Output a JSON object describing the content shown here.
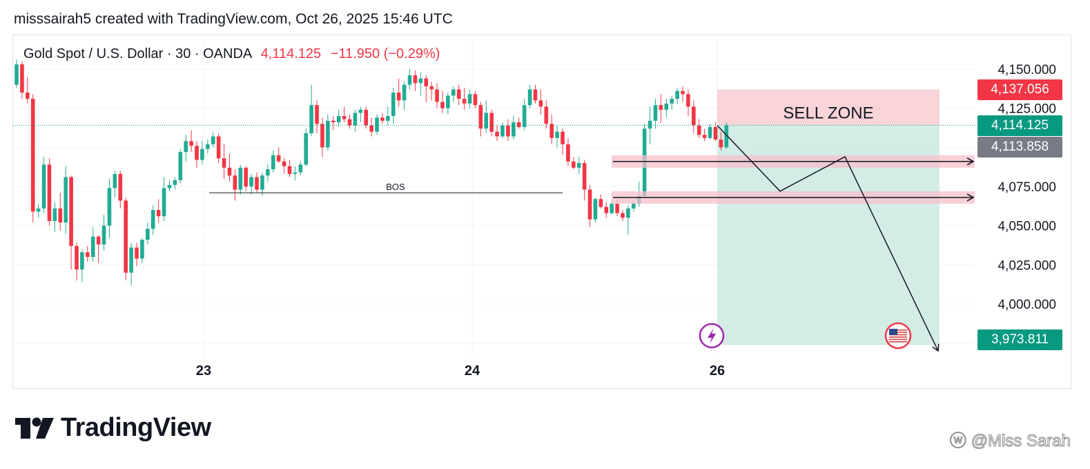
{
  "header": {
    "text": "misssairah5 created with TradingView.com, Oct 26, 2025 15:46 UTC"
  },
  "legend": {
    "symbol": "Gold Spot / U.S. Dollar · 30 · OANDA",
    "price": "4,114.125",
    "change": "−11.950 (−0.29%)"
  },
  "brand": {
    "wordmark": "TradingView",
    "logo_icon": "tradingview-logo-icon"
  },
  "watermark": {
    "text": "@Miss Sarah",
    "icon": "weibo-icon"
  },
  "colors": {
    "up": "#22ab94",
    "down": "#f23645",
    "sell_zone": "#f7c9cf",
    "target_zone": "#cfeae3",
    "gray_tag": "#787b86"
  },
  "price_tags": [
    {
      "label": "4,137.056",
      "value": 4137.056,
      "color": "#f23645"
    },
    {
      "label": "4,114.125",
      "value": 4114.125,
      "color": "#089981"
    },
    {
      "label": "4,113.858",
      "value": 4113.858,
      "color": "#787b86"
    },
    {
      "label": "3,973.811",
      "value": 3973.811,
      "color": "#089981"
    }
  ],
  "annotations": {
    "sell_zone": "SELL ZONE",
    "bos": "BOS"
  },
  "chart_data": {
    "type": "candlestick",
    "y_ticks": [
      4150,
      4125,
      4075,
      4050,
      4025,
      4000
    ],
    "y_tick_labels": [
      "4,150.000",
      "4,125.000",
      "4,075.000",
      "4,050.000",
      "4,025.000",
      "4,000.000"
    ],
    "x_tick_labels": [
      "23",
      "24",
      "26"
    ],
    "ylim": [
      3965,
      4170
    ],
    "last_price": 4114.125,
    "sell_zone": {
      "top": 4137.056,
      "bottom": 4114.125
    },
    "target_zone": {
      "top": 4114.125,
      "bottom": 3973.811
    },
    "resistance_bands": [
      4091,
      4068
    ],
    "bos_level": 4071,
    "projection_path": [
      4114,
      4072,
      4094,
      3970
    ],
    "ohlc": [
      [
        4140,
        4156,
        4138,
        4153
      ],
      [
        4153,
        4155,
        4131,
        4135
      ],
      [
        4135,
        4145,
        4128,
        4131
      ],
      [
        4131,
        4134,
        4052,
        4059
      ],
      [
        4059,
        4064,
        4055,
        4061
      ],
      [
        4061,
        4094,
        4058,
        4089
      ],
      [
        4089,
        4093,
        4050,
        4053
      ],
      [
        4053,
        4065,
        4046,
        4061
      ],
      [
        4061,
        4071,
        4047,
        4052
      ],
      [
        4052,
        4088,
        4045,
        4081
      ],
      [
        4081,
        4082,
        4022,
        4037
      ],
      [
        4037,
        4039,
        4015,
        4022
      ],
      [
        4022,
        4035,
        4014,
        4033
      ],
      [
        4033,
        4037,
        4027,
        4030
      ],
      [
        4030,
        4049,
        4027,
        4043
      ],
      [
        4043,
        4044,
        4026,
        4038
      ],
      [
        4038,
        4057,
        4034,
        4050
      ],
      [
        4050,
        4080,
        4042,
        4074
      ],
      [
        4074,
        4085,
        4068,
        4083
      ],
      [
        4083,
        4085,
        4061,
        4066
      ],
      [
        4066,
        4068,
        4015,
        4020
      ],
      [
        4020,
        4039,
        4012,
        4036
      ],
      [
        4036,
        4039,
        4024,
        4029
      ],
      [
        4029,
        4042,
        4026,
        4041
      ],
      [
        4041,
        4052,
        4038,
        4048
      ],
      [
        4048,
        4063,
        4044,
        4060
      ],
      [
        4060,
        4067,
        4052,
        4056
      ],
      [
        4056,
        4081,
        4053,
        4074
      ],
      [
        4074,
        4079,
        4072,
        4076
      ],
      [
        4076,
        4081,
        4073,
        4079
      ],
      [
        4079,
        4099,
        4077,
        4097
      ],
      [
        4097,
        4108,
        4091,
        4104
      ],
      [
        4104,
        4111,
        4097,
        4101
      ],
      [
        4101,
        4104,
        4087,
        4092
      ],
      [
        4092,
        4104,
        4089,
        4099
      ],
      [
        4099,
        4105,
        4096,
        4102
      ],
      [
        4102,
        4110,
        4100,
        4107
      ],
      [
        4107,
        4109,
        4090,
        4093
      ],
      [
        4093,
        4102,
        4080,
        4087
      ],
      [
        4087,
        4096,
        4078,
        4082
      ],
      [
        4082,
        4086,
        4066,
        4073
      ],
      [
        4073,
        4089,
        4070,
        4087
      ],
      [
        4087,
        4088,
        4072,
        4075
      ],
      [
        4075,
        4083,
        4070,
        4081
      ],
      [
        4081,
        4084,
        4071,
        4073
      ],
      [
        4073,
        4084,
        4069,
        4082
      ],
      [
        4082,
        4089,
        4078,
        4086
      ],
      [
        4086,
        4098,
        4084,
        4095
      ],
      [
        4095,
        4100,
        4090,
        4091
      ],
      [
        4091,
        4093,
        4083,
        4088
      ],
      [
        4088,
        4092,
        4081,
        4083
      ],
      [
        4083,
        4088,
        4079,
        4084
      ],
      [
        4084,
        4091,
        4082,
        4089
      ],
      [
        4089,
        4112,
        4088,
        4109
      ],
      [
        4109,
        4140,
        4107,
        4127
      ],
      [
        4127,
        4130,
        4109,
        4115
      ],
      [
        4115,
        4119,
        4094,
        4100
      ],
      [
        4100,
        4121,
        4098,
        4117
      ],
      [
        4117,
        4120,
        4111,
        4116
      ],
      [
        4116,
        4124,
        4113,
        4120
      ],
      [
        4120,
        4126,
        4116,
        4118
      ],
      [
        4118,
        4121,
        4112,
        4114
      ],
      [
        4114,
        4124,
        4110,
        4122
      ],
      [
        4122,
        4126,
        4116,
        4124
      ],
      [
        4124,
        4126,
        4112,
        4114
      ],
      [
        4114,
        4119,
        4107,
        4110
      ],
      [
        4110,
        4121,
        4108,
        4119
      ],
      [
        4119,
        4122,
        4115,
        4117
      ],
      [
        4117,
        4126,
        4114,
        4120
      ],
      [
        4120,
        4138,
        4115,
        4135
      ],
      [
        4135,
        4144,
        4126,
        4130
      ],
      [
        4130,
        4142,
        4124,
        4140
      ],
      [
        4140,
        4150,
        4137,
        4146
      ],
      [
        4146,
        4149,
        4136,
        4141
      ],
      [
        4141,
        4148,
        4133,
        4144
      ],
      [
        4144,
        4146,
        4129,
        4139
      ],
      [
        4139,
        4142,
        4130,
        4137
      ],
      [
        4137,
        4141,
        4125,
        4129
      ],
      [
        4129,
        4136,
        4122,
        4125
      ],
      [
        4125,
        4135,
        4121,
        4133
      ],
      [
        4133,
        4139,
        4129,
        4137
      ],
      [
        4137,
        4140,
        4127,
        4131
      ],
      [
        4131,
        4138,
        4124,
        4128
      ],
      [
        4128,
        4137,
        4125,
        4134
      ],
      [
        4134,
        4136,
        4125,
        4127
      ],
      [
        4127,
        4129,
        4107,
        4112
      ],
      [
        4112,
        4130,
        4109,
        4122
      ],
      [
        4122,
        4124,
        4107,
        4110
      ],
      [
        4110,
        4114,
        4104,
        4107
      ],
      [
        4107,
        4116,
        4106,
        4114
      ],
      [
        4114,
        4118,
        4104,
        4107
      ],
      [
        4107,
        4120,
        4105,
        4116
      ],
      [
        4116,
        4119,
        4112,
        4113
      ],
      [
        4113,
        4131,
        4111,
        4127
      ],
      [
        4127,
        4140,
        4125,
        4137
      ],
      [
        4137,
        4140,
        4128,
        4130
      ],
      [
        4130,
        4137,
        4121,
        4126
      ],
      [
        4126,
        4130,
        4112,
        4115
      ],
      [
        4115,
        4121,
        4102,
        4106
      ],
      [
        4106,
        4114,
        4100,
        4110
      ],
      [
        4110,
        4112,
        4095,
        4102
      ],
      [
        4102,
        4106,
        4088,
        4091
      ],
      [
        4091,
        4094,
        4086,
        4087
      ],
      [
        4087,
        4094,
        4083,
        4090
      ],
      [
        4090,
        4092,
        4066,
        4073
      ],
      [
        4073,
        4076,
        4049,
        4054
      ],
      [
        4054,
        4068,
        4052,
        4067
      ],
      [
        4067,
        4070,
        4061,
        4062
      ],
      [
        4062,
        4065,
        4055,
        4058
      ],
      [
        4058,
        4066,
        4057,
        4064
      ],
      [
        4064,
        4067,
        4056,
        4058
      ],
      [
        4058,
        4060,
        4053,
        4055
      ],
      [
        4055,
        4063,
        4044,
        4061
      ],
      [
        4061,
        4066,
        4059,
        4064
      ],
      [
        4064,
        4078,
        4062,
        4069
      ],
      [
        4069,
        4115,
        4068,
        4112
      ],
      [
        4112,
        4126,
        4102,
        4117
      ],
      [
        4117,
        4131,
        4112,
        4127
      ],
      [
        4127,
        4134,
        4116,
        4124
      ],
      [
        4124,
        4131,
        4119,
        4128
      ],
      [
        4128,
        4133,
        4124,
        4131
      ],
      [
        4131,
        4138,
        4128,
        4136
      ],
      [
        4136,
        4139,
        4129,
        4134
      ],
      [
        4134,
        4137,
        4120,
        4126
      ],
      [
        4126,
        4130,
        4109,
        4114
      ],
      [
        4114,
        4118,
        4106,
        4108
      ],
      [
        4108,
        4112,
        4104,
        4106
      ],
      [
        4106,
        4115,
        4105,
        4113
      ],
      [
        4113,
        4116,
        4104,
        4105
      ],
      [
        4105,
        4110,
        4098,
        4100
      ],
      [
        4100,
        4116,
        4099,
        4114
      ]
    ]
  }
}
